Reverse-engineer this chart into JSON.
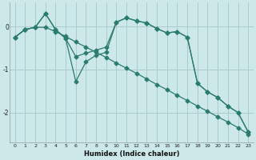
{
  "xlabel": "Humidex (Indice chaleur)",
  "background_color": "#cce8e8",
  "grid_color": "#aacccc",
  "line_color": "#2a7d6e",
  "xlim": [
    -0.5,
    23.5
  ],
  "ylim": [
    -2.7,
    0.55
  ],
  "yticks": [
    0,
    -1,
    -2
  ],
  "xticks": [
    0,
    1,
    2,
    3,
    4,
    5,
    6,
    7,
    8,
    9,
    10,
    11,
    12,
    13,
    14,
    15,
    16,
    17,
    18,
    19,
    20,
    21,
    22,
    23
  ],
  "line1_x": [
    0,
    1,
    2,
    3,
    4,
    5,
    6,
    7,
    8,
    9,
    10,
    11,
    12,
    13,
    14,
    15,
    16,
    17,
    18,
    19,
    20,
    21,
    22,
    23
  ],
  "line1_y": [
    -0.25,
    -0.07,
    -0.02,
    -0.02,
    -0.12,
    -0.23,
    -0.36,
    -0.48,
    -0.6,
    -0.72,
    -0.85,
    -0.97,
    -1.09,
    -1.22,
    -1.35,
    -1.47,
    -1.6,
    -1.72,
    -1.85,
    -1.97,
    -2.1,
    -2.22,
    -2.35,
    -2.5
  ],
  "line2_x": [
    0,
    1,
    2,
    3,
    4,
    5,
    6,
    7,
    8,
    9,
    10,
    11,
    12,
    13,
    14,
    15,
    16,
    17,
    18,
    19,
    20,
    21,
    22,
    23
  ],
  "line2_y": [
    -0.25,
    -0.07,
    -0.02,
    0.3,
    -0.07,
    -0.28,
    -0.7,
    -0.62,
    -0.55,
    -0.48,
    0.1,
    0.2,
    0.13,
    0.08,
    -0.05,
    -0.15,
    -0.12,
    -0.25,
    -1.32,
    -1.52,
    -1.65,
    -1.85,
    -2.0,
    -2.45
  ],
  "line3_x": [
    0,
    1,
    2,
    3,
    4,
    5,
    6,
    7,
    8,
    9,
    10,
    11,
    12,
    13,
    14,
    15,
    16,
    17,
    18,
    19,
    20,
    21,
    22,
    23
  ],
  "line3_y": [
    -0.25,
    -0.07,
    -0.02,
    0.3,
    -0.07,
    -0.28,
    -1.28,
    -0.82,
    -0.67,
    -0.6,
    0.1,
    0.2,
    0.13,
    0.08,
    -0.05,
    -0.15,
    -0.12,
    -0.25,
    -1.32,
    -1.52,
    -1.65,
    -1.85,
    -2.0,
    -2.45
  ]
}
